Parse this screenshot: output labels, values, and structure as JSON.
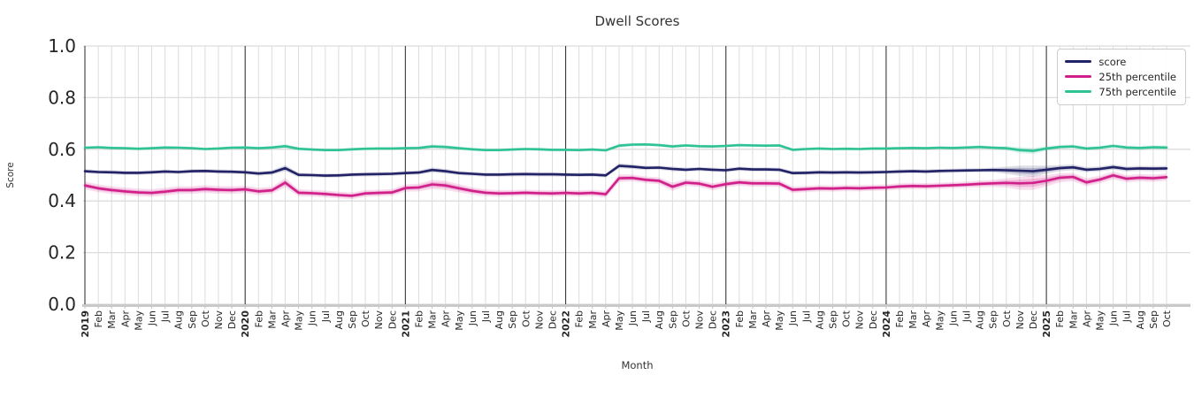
{
  "title": "Dwell Scores",
  "chart_data": {
    "type": "line",
    "title": "Dwell Scores",
    "xlabel": "Month",
    "ylabel": "Score",
    "ylim": [
      0.0,
      1.0
    ],
    "yticks": [
      0.0,
      0.2,
      0.4,
      0.6,
      0.8,
      1.0
    ],
    "grid": true,
    "legend_position": "upper right",
    "x_tick_labels": [
      "2019",
      "Feb",
      "Mar",
      "Apr",
      "May",
      "Jun",
      "Jul",
      "Aug",
      "Sep",
      "Oct",
      "Nov",
      "Dec",
      "2020",
      "Feb",
      "Mar",
      "Apr",
      "May",
      "Jun",
      "Jul",
      "Aug",
      "Sep",
      "Oct",
      "Nov",
      "Dec",
      "2021",
      "Feb",
      "Mar",
      "Apr",
      "May",
      "Jun",
      "Jul",
      "Aug",
      "Sep",
      "Oct",
      "Nov",
      "Dec",
      "2022",
      "Feb",
      "Mar",
      "Apr",
      "May",
      "Jun",
      "Jul",
      "Aug",
      "Sep",
      "Oct",
      "Nov",
      "Dec",
      "2023",
      "Feb",
      "Mar",
      "Apr",
      "May",
      "Jun",
      "Jul",
      "Aug",
      "Sep",
      "Oct",
      "Nov",
      "Dec",
      "2024",
      "Feb",
      "Mar",
      "Apr",
      "May",
      "Jun",
      "Jul",
      "Aug",
      "Sep",
      "Oct",
      "Nov",
      "Dec",
      "2025",
      "Feb",
      "Mar",
      "Apr",
      "May",
      "Jun",
      "Jul",
      "Aug",
      "Sep",
      "Oct"
    ],
    "year_line_indices": [
      0,
      12,
      24,
      36,
      48,
      60,
      72
    ],
    "colors": {
      "grid": "#dcdcdc",
      "year_line": "#3c3c3c",
      "axis_spine": "#c9c9c9",
      "tick": "#c0c0c0",
      "tick_label": "#262626"
    },
    "series": [
      {
        "name": "score",
        "color": "#222266",
        "values": [
          0.515,
          0.512,
          0.511,
          0.509,
          0.509,
          0.511,
          0.514,
          0.512,
          0.515,
          0.516,
          0.514,
          0.513,
          0.511,
          0.506,
          0.51,
          0.527,
          0.501,
          0.5,
          0.498,
          0.499,
          0.502,
          0.503,
          0.504,
          0.505,
          0.508,
          0.51,
          0.52,
          0.515,
          0.508,
          0.505,
          0.502,
          0.502,
          0.503,
          0.504,
          0.503,
          0.503,
          0.502,
          0.501,
          0.502,
          0.499,
          0.536,
          0.533,
          0.528,
          0.529,
          0.524,
          0.521,
          0.524,
          0.521,
          0.519,
          0.525,
          0.522,
          0.522,
          0.521,
          0.508,
          0.509,
          0.511,
          0.51,
          0.511,
          0.51,
          0.511,
          0.512,
          0.514,
          0.515,
          0.514,
          0.516,
          0.517,
          0.518,
          0.519,
          0.52,
          0.519,
          0.517,
          0.515,
          0.521,
          0.527,
          0.53,
          0.521,
          0.524,
          0.531,
          0.524,
          0.526,
          0.525,
          0.526
        ],
        "band_halfwidths": [
          0.008,
          0.008,
          0.008,
          0.008,
          0.008,
          0.008,
          0.008,
          0.008,
          0.008,
          0.008,
          0.008,
          0.008,
          0.008,
          0.008,
          0.009,
          0.012,
          0.009,
          0.008,
          0.008,
          0.008,
          0.008,
          0.008,
          0.008,
          0.008,
          0.008,
          0.008,
          0.01,
          0.009,
          0.008,
          0.008,
          0.008,
          0.008,
          0.008,
          0.008,
          0.008,
          0.008,
          0.008,
          0.008,
          0.008,
          0.008,
          0.01,
          0.009,
          0.008,
          0.008,
          0.009,
          0.008,
          0.008,
          0.008,
          0.008,
          0.008,
          0.008,
          0.008,
          0.008,
          0.008,
          0.008,
          0.008,
          0.008,
          0.008,
          0.008,
          0.008,
          0.008,
          0.008,
          0.008,
          0.008,
          0.008,
          0.008,
          0.008,
          0.008,
          0.009,
          0.014,
          0.02,
          0.022,
          0.016,
          0.012,
          0.011,
          0.01,
          0.01,
          0.01,
          0.01,
          0.01,
          0.01,
          0.01
        ]
      },
      {
        "name": "25th percentile",
        "color": "#d1208a",
        "values": [
          0.46,
          0.449,
          0.442,
          0.437,
          0.433,
          0.431,
          0.436,
          0.442,
          0.442,
          0.446,
          0.443,
          0.442,
          0.445,
          0.437,
          0.441,
          0.471,
          0.432,
          0.43,
          0.427,
          0.423,
          0.42,
          0.429,
          0.431,
          0.433,
          0.45,
          0.452,
          0.464,
          0.46,
          0.449,
          0.439,
          0.432,
          0.429,
          0.43,
          0.432,
          0.43,
          0.429,
          0.431,
          0.429,
          0.431,
          0.426,
          0.488,
          0.489,
          0.482,
          0.478,
          0.455,
          0.471,
          0.467,
          0.455,
          0.465,
          0.472,
          0.468,
          0.468,
          0.467,
          0.443,
          0.446,
          0.449,
          0.448,
          0.45,
          0.449,
          0.451,
          0.452,
          0.456,
          0.458,
          0.457,
          0.459,
          0.461,
          0.463,
          0.466,
          0.468,
          0.47,
          0.468,
          0.47,
          0.478,
          0.49,
          0.493,
          0.472,
          0.483,
          0.499,
          0.486,
          0.49,
          0.488,
          0.492
        ],
        "band_halfwidths": [
          0.015,
          0.015,
          0.015,
          0.015,
          0.015,
          0.015,
          0.015,
          0.015,
          0.015,
          0.015,
          0.015,
          0.015,
          0.014,
          0.014,
          0.014,
          0.018,
          0.014,
          0.013,
          0.013,
          0.013,
          0.013,
          0.013,
          0.013,
          0.013,
          0.014,
          0.015,
          0.018,
          0.018,
          0.016,
          0.014,
          0.013,
          0.013,
          0.012,
          0.012,
          0.012,
          0.012,
          0.012,
          0.012,
          0.012,
          0.013,
          0.015,
          0.013,
          0.013,
          0.013,
          0.016,
          0.013,
          0.013,
          0.014,
          0.013,
          0.013,
          0.013,
          0.013,
          0.013,
          0.013,
          0.012,
          0.012,
          0.012,
          0.012,
          0.012,
          0.012,
          0.012,
          0.012,
          0.012,
          0.012,
          0.012,
          0.012,
          0.012,
          0.013,
          0.014,
          0.018,
          0.025,
          0.028,
          0.022,
          0.018,
          0.016,
          0.016,
          0.015,
          0.015,
          0.014,
          0.014,
          0.014,
          0.014
        ]
      },
      {
        "name": "75th percentile",
        "color": "#2fc294",
        "values": [
          0.606,
          0.608,
          0.605,
          0.604,
          0.602,
          0.604,
          0.607,
          0.606,
          0.604,
          0.601,
          0.603,
          0.606,
          0.607,
          0.604,
          0.607,
          0.612,
          0.602,
          0.599,
          0.597,
          0.597,
          0.6,
          0.602,
          0.603,
          0.603,
          0.604,
          0.605,
          0.611,
          0.609,
          0.604,
          0.6,
          0.597,
          0.597,
          0.599,
          0.601,
          0.6,
          0.598,
          0.598,
          0.597,
          0.599,
          0.596,
          0.614,
          0.618,
          0.619,
          0.616,
          0.611,
          0.615,
          0.612,
          0.611,
          0.613,
          0.616,
          0.615,
          0.614,
          0.615,
          0.598,
          0.601,
          0.603,
          0.601,
          0.602,
          0.601,
          0.603,
          0.603,
          0.604,
          0.605,
          0.604,
          0.606,
          0.605,
          0.607,
          0.609,
          0.606,
          0.604,
          0.597,
          0.594,
          0.603,
          0.609,
          0.611,
          0.603,
          0.606,
          0.613,
          0.607,
          0.605,
          0.608,
          0.607
        ],
        "band_halfwidths": [
          0.006,
          0.006,
          0.006,
          0.006,
          0.006,
          0.006,
          0.006,
          0.006,
          0.006,
          0.006,
          0.006,
          0.006,
          0.006,
          0.006,
          0.007,
          0.009,
          0.007,
          0.006,
          0.006,
          0.006,
          0.006,
          0.006,
          0.006,
          0.006,
          0.006,
          0.007,
          0.008,
          0.008,
          0.007,
          0.006,
          0.006,
          0.006,
          0.006,
          0.006,
          0.006,
          0.006,
          0.006,
          0.006,
          0.006,
          0.006,
          0.008,
          0.007,
          0.006,
          0.006,
          0.007,
          0.006,
          0.006,
          0.006,
          0.006,
          0.006,
          0.006,
          0.006,
          0.006,
          0.006,
          0.006,
          0.006,
          0.006,
          0.006,
          0.006,
          0.006,
          0.006,
          0.006,
          0.006,
          0.006,
          0.006,
          0.006,
          0.006,
          0.007,
          0.007,
          0.009,
          0.012,
          0.012,
          0.01,
          0.008,
          0.008,
          0.008,
          0.008,
          0.008,
          0.008,
          0.008,
          0.008,
          0.008
        ]
      }
    ]
  }
}
